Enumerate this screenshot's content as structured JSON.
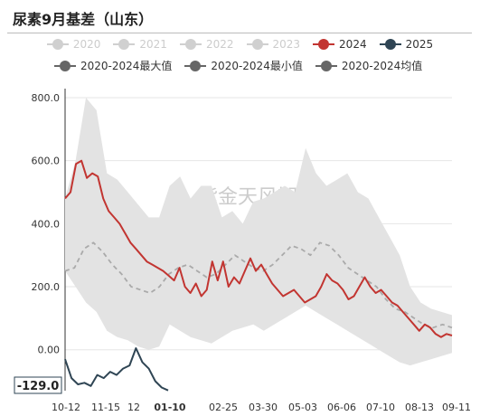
{
  "title": "尿素9月基差（山东）",
  "watermark": "紫金天风期货",
  "current_value_label": "-129.0",
  "legend": {
    "row1": [
      {
        "label": "2020",
        "color": "#d0d0d0",
        "muted": true
      },
      {
        "label": "2021",
        "color": "#d0d0d0",
        "muted": true
      },
      {
        "label": "2022",
        "color": "#d0d0d0",
        "muted": true
      },
      {
        "label": "2023",
        "color": "#d0d0d0",
        "muted": true
      },
      {
        "label": "2024",
        "color": "#c23531",
        "muted": false
      },
      {
        "label": "2025",
        "color": "#2f4554",
        "muted": false
      }
    ],
    "row2": [
      {
        "label": "2020-2024最大值",
        "color": "#666666",
        "muted": false
      },
      {
        "label": "2020-2024最小值",
        "color": "#666666",
        "muted": false
      },
      {
        "label": "2020-2024均值",
        "color": "#666666",
        "muted": false
      }
    ]
  },
  "chart_data": {
    "type": "line",
    "title": "尿素9月基差（山东）",
    "x_ticks": [
      "10-12",
      "11-15",
      "12",
      "01-10",
      "02-25",
      "03-30",
      "05-03",
      "06-06",
      "07-10",
      "08-13",
      "09-11"
    ],
    "highlighted_x_tick": "01-10",
    "y_ticks": [
      "800.0",
      "600.0",
      "400.0",
      "200.0",
      "0.00"
    ],
    "ylim": [
      -130,
      800
    ],
    "series": [
      {
        "name": "2024",
        "color": "#c23531",
        "values": [
          480,
          500,
          590,
          600,
          545,
          560,
          550,
          480,
          440,
          420,
          400,
          370,
          340,
          320,
          300,
          280,
          270,
          260,
          250,
          235,
          220,
          260,
          200,
          180,
          210,
          170,
          190,
          280,
          220,
          280,
          200,
          230,
          210,
          250,
          290,
          250,
          270,
          240,
          210,
          190,
          170,
          180,
          190,
          170,
          150,
          160,
          170,
          200,
          240,
          220,
          210,
          190,
          160,
          170,
          200,
          230,
          200,
          180,
          190,
          170,
          150,
          140,
          120,
          100,
          80,
          60,
          80,
          70,
          50,
          40,
          50,
          45
        ]
      },
      {
        "name": "2025",
        "color": "#2f4554",
        "values": [
          -30,
          -90,
          -110,
          -105,
          -115,
          -80,
          -90,
          -70,
          -80,
          -60,
          -50,
          5,
          -40,
          -60,
          -100,
          -120,
          -129
        ]
      },
      {
        "name": "2020-2024均值",
        "color": "#aaaaaa",
        "style": "dashed",
        "values": [
          250,
          260,
          320,
          340,
          310,
          270,
          240,
          200,
          190,
          180,
          200,
          240,
          260,
          270,
          250,
          230,
          240,
          270,
          300,
          280,
          260,
          250,
          270,
          300,
          330,
          320,
          300,
          340,
          330,
          300,
          260,
          240,
          220,
          200,
          160,
          130,
          120,
          100,
          80,
          70,
          80,
          70
        ]
      },
      {
        "name": "2020-2024最大值",
        "color": "#e3e3e3",
        "values": [
          480,
          600,
          800,
          760,
          560,
          540,
          500,
          460,
          420,
          420,
          520,
          550,
          480,
          520,
          520,
          420,
          440,
          400,
          470,
          480,
          500,
          520,
          500,
          640,
          560,
          520,
          540,
          560,
          500,
          480,
          420,
          360,
          300,
          200,
          150,
          130,
          120,
          110
        ]
      },
      {
        "name": "2020-2024最小值",
        "color": "#e3e3e3",
        "values": [
          250,
          200,
          150,
          120,
          60,
          40,
          30,
          10,
          0,
          10,
          80,
          60,
          40,
          30,
          20,
          40,
          60,
          70,
          80,
          60,
          80,
          100,
          120,
          140,
          120,
          100,
          80,
          60,
          40,
          20,
          0,
          -20,
          -40,
          -50,
          -40,
          -30,
          -20,
          -10
        ]
      }
    ]
  }
}
